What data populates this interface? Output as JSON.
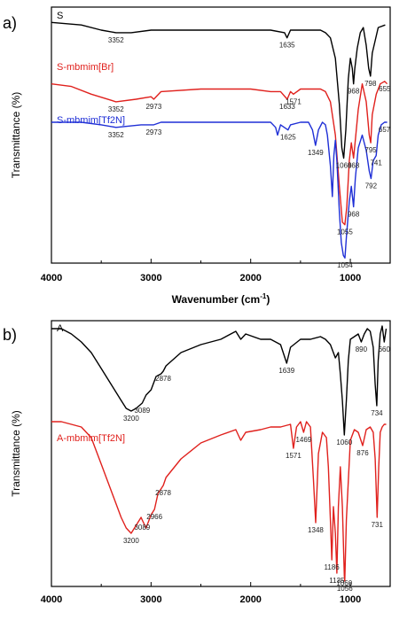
{
  "panels": [
    {
      "letter": "a)"
    },
    {
      "letter": "b)"
    }
  ],
  "chart_data": [
    {
      "type": "line",
      "panel": "a)",
      "xlabel": "Wavenumber (cm⁻¹)",
      "ylabel": "Transmittance (%)",
      "xlim": [
        4000,
        600
      ],
      "x_reversed": true,
      "xticks": [
        4000,
        3000,
        2000,
        1000
      ],
      "ylim": [
        0,
        100
      ],
      "grid": false,
      "legend": "inline labels",
      "series": [
        {
          "name": "S",
          "color": "#000000",
          "x": [
            4000,
            3700,
            3500,
            3352,
            3200,
            3000,
            2800,
            2400,
            2000,
            1800,
            1660,
            1635,
            1600,
            1450,
            1300,
            1250,
            1200,
            1150,
            1110,
            1085,
            1066,
            1045,
            1020,
            1000,
            980,
            968,
            955,
            930,
            900,
            870,
            840,
            815,
            798,
            780,
            720,
            650
          ],
          "y": [
            94,
            93,
            91,
            90,
            90,
            91,
            91,
            91,
            91,
            91,
            90,
            88,
            91,
            91,
            91,
            90,
            88,
            80,
            62,
            45,
            41,
            52,
            72,
            80,
            76,
            70,
            76,
            84,
            90,
            92,
            85,
            76,
            73,
            82,
            92,
            93
          ]
        },
        {
          "name": "S-mbmim[Br]",
          "color": "#e0211d",
          "x": [
            4000,
            3800,
            3600,
            3352,
            3150,
            3000,
            2973,
            2900,
            2500,
            2000,
            1800,
            1700,
            1633,
            1600,
            1571,
            1500,
            1400,
            1300,
            1250,
            1200,
            1150,
            1110,
            1080,
            1055,
            1035,
            1010,
            990,
            968,
            950,
            920,
            880,
            840,
            810,
            795,
            780,
            740,
            700,
            655,
            630
          ],
          "y": [
            70,
            69,
            66,
            63,
            64,
            65,
            64,
            67,
            68,
            68,
            67,
            67,
            64,
            67,
            66,
            68,
            68,
            68,
            67,
            63,
            50,
            30,
            16,
            15,
            22,
            40,
            47,
            41,
            48,
            60,
            70,
            63,
            50,
            47,
            58,
            66,
            70,
            71,
            70
          ]
        },
        {
          "name": "S-mbmim[Tf2N]",
          "color": "#1f2fd6",
          "x": [
            4000,
            3700,
            3500,
            3352,
            3100,
            2973,
            2900,
            2400,
            2000,
            1800,
            1750,
            1730,
            1700,
            1625,
            1600,
            1500,
            1420,
            1380,
            1349,
            1320,
            1280,
            1250,
            1230,
            1200,
            1180,
            1165,
            1150,
            1135,
            1110,
            1090,
            1070,
            1054,
            1040,
            1010,
            990,
            968,
            950,
            920,
            880,
            840,
            810,
            792,
            770,
            741,
            720,
            690,
            657,
            630
          ],
          "y": [
            55,
            55,
            54,
            53,
            54,
            54,
            55,
            55,
            55,
            55,
            53,
            50,
            54,
            52,
            54,
            55,
            55,
            52,
            46,
            52,
            55,
            54,
            50,
            38,
            26,
            42,
            48,
            40,
            20,
            8,
            3,
            2,
            10,
            24,
            30,
            22,
            33,
            45,
            50,
            44,
            36,
            33,
            40,
            42,
            50,
            54,
            55,
            55
          ]
        }
      ],
      "annotations": [
        {
          "text": "3352",
          "x": 3352,
          "y": 90
        },
        {
          "text": "1635",
          "x": 1635,
          "y": 88
        },
        {
          "text": "968",
          "x": 968,
          "y": 70
        },
        {
          "text": "798",
          "x": 798,
          "y": 73
        },
        {
          "text": "3352",
          "x": 3352,
          "y": 63
        },
        {
          "text": "2973",
          "x": 2973,
          "y": 64
        },
        {
          "text": "1633",
          "x": 1633,
          "y": 64
        },
        {
          "text": "1571",
          "x": 1571,
          "y": 66
        },
        {
          "text": "655",
          "x": 655,
          "y": 71
        },
        {
          "text": "795",
          "x": 795,
          "y": 47
        },
        {
          "text": "1066",
          "x": 1066,
          "y": 41
        },
        {
          "text": "968",
          "x": 968,
          "y": 41
        },
        {
          "text": "3352",
          "x": 3352,
          "y": 53
        },
        {
          "text": "2973",
          "x": 2973,
          "y": 54
        },
        {
          "text": "1625",
          "x": 1625,
          "y": 52
        },
        {
          "text": "1349",
          "x": 1349,
          "y": 46
        },
        {
          "text": "657",
          "x": 657,
          "y": 55
        },
        {
          "text": "741",
          "x": 741,
          "y": 42
        },
        {
          "text": "792",
          "x": 792,
          "y": 33
        },
        {
          "text": "1055",
          "x": 1055,
          "y": 15
        },
        {
          "text": "968",
          "x": 968,
          "y": 22
        },
        {
          "text": "1054",
          "x": 1054,
          "y": 2
        }
      ]
    },
    {
      "type": "line",
      "panel": "b)",
      "xlabel": "",
      "ylabel": "Transmittance (%)",
      "xlim": [
        4000,
        600
      ],
      "x_reversed": true,
      "xticks": [
        4000,
        3000,
        2000,
        1000
      ],
      "ylim": [
        0,
        100
      ],
      "grid": false,
      "legend": "inline labels",
      "series": [
        {
          "name": "A",
          "color": "#000000",
          "x": [
            4000,
            3900,
            3800,
            3700,
            3600,
            3500,
            3400,
            3300,
            3250,
            3200,
            3150,
            3089,
            3050,
            3000,
            2950,
            2900,
            2878,
            2850,
            2700,
            2500,
            2300,
            2150,
            2100,
            2050,
            1900,
            1800,
            1700,
            1639,
            1600,
            1500,
            1400,
            1300,
            1250,
            1200,
            1150,
            1120,
            1100,
            1080,
            1060,
            1040,
            1020,
            1000,
            960,
            920,
            890,
            860,
            830,
            800,
            770,
            750,
            734,
            720,
            700,
            680,
            660,
            640
          ],
          "y": [
            97,
            97,
            95,
            92,
            88,
            82,
            76,
            70,
            67,
            66,
            67,
            69,
            72,
            74,
            79,
            80,
            81,
            83,
            88,
            91,
            93,
            96,
            93,
            95,
            93,
            93,
            91,
            84,
            90,
            93,
            93,
            94,
            93,
            91,
            86,
            88,
            80,
            70,
            57,
            70,
            85,
            93,
            94,
            95,
            92,
            95,
            97,
            96,
            90,
            76,
            68,
            85,
            95,
            98,
            92,
            97
          ],
          "x_extra": [],
          "y_extra": []
        },
        {
          "name": "A-mbmim[Tf2N]",
          "color": "#e0211d",
          "x": [
            4000,
            3900,
            3800,
            3700,
            3600,
            3500,
            3400,
            3300,
            3250,
            3200,
            3150,
            3100,
            3089,
            3050,
            3000,
            2966,
            2930,
            2878,
            2850,
            2700,
            2500,
            2300,
            2150,
            2100,
            2050,
            1900,
            1800,
            1700,
            1600,
            1571,
            1540,
            1500,
            1469,
            1440,
            1400,
            1370,
            1348,
            1320,
            1280,
            1240,
            1220,
            1200,
            1186,
            1170,
            1150,
            1135,
            1120,
            1100,
            1080,
            1060,
            1056,
            1040,
            1000,
            960,
            920,
            876,
            840,
            800,
            770,
            750,
            731,
            715,
            700,
            680,
            660,
            640
          ],
          "y": [
            62,
            62,
            61,
            60,
            56,
            46,
            36,
            26,
            22,
            20,
            23,
            26,
            25,
            22,
            27,
            29,
            35,
            38,
            41,
            48,
            54,
            57,
            59,
            55,
            58,
            59,
            60,
            60,
            61,
            52,
            60,
            62,
            58,
            62,
            60,
            40,
            24,
            50,
            58,
            56,
            45,
            25,
            10,
            30,
            20,
            5,
            30,
            45,
            30,
            4,
            2,
            25,
            55,
            59,
            58,
            53,
            59,
            60,
            58,
            48,
            26,
            45,
            58,
            60,
            61,
            61
          ],
          "x_extra": [],
          "y_extra": []
        }
      ],
      "annotations": [
        {
          "text": "3200",
          "x": 3200,
          "y": 66
        },
        {
          "text": "3089",
          "x": 3089,
          "y": 69
        },
        {
          "text": "2878",
          "x": 2878,
          "y": 81
        },
        {
          "text": "1639",
          "x": 1639,
          "y": 84
        },
        {
          "text": "890",
          "x": 890,
          "y": 92
        },
        {
          "text": "660",
          "x": 660,
          "y": 92
        },
        {
          "text": "1060",
          "x": 1060,
          "y": 57
        },
        {
          "text": "734",
          "x": 734,
          "y": 68
        },
        {
          "text": "3200",
          "x": 3200,
          "y": 20
        },
        {
          "text": "3089",
          "x": 3089,
          "y": 25
        },
        {
          "text": "2966",
          "x": 2966,
          "y": 29
        },
        {
          "text": "2878",
          "x": 2878,
          "y": 38
        },
        {
          "text": "1571",
          "x": 1571,
          "y": 52
        },
        {
          "text": "1469",
          "x": 1469,
          "y": 58
        },
        {
          "text": "1348",
          "x": 1348,
          "y": 24
        },
        {
          "text": "1186",
          "x": 1186,
          "y": 10
        },
        {
          "text": "1135",
          "x": 1135,
          "y": 5
        },
        {
          "text": "1056",
          "x": 1056,
          "y": 2
        },
        {
          "text": "1060",
          "x": 1060,
          "y": 4
        },
        {
          "text": "876",
          "x": 876,
          "y": 53
        },
        {
          "text": "731",
          "x": 731,
          "y": 26
        }
      ]
    }
  ]
}
